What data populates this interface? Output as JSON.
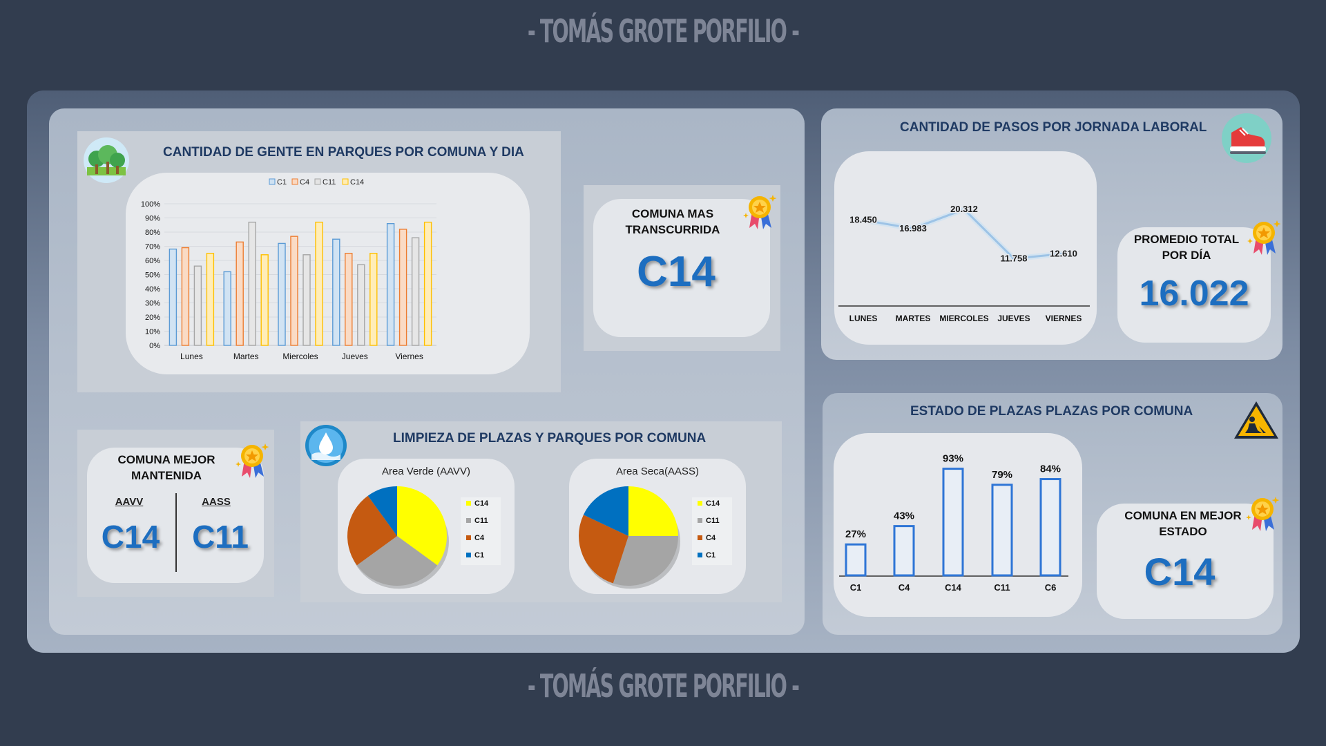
{
  "brand": {
    "text": "- TOMÁS GROTE PORFILIO -"
  },
  "park_chart": {
    "title": "CANTIDAD DE GENTE EN PARQUES POR COMUNA Y DIA",
    "chart_data": {
      "type": "bar",
      "categories": [
        "Lunes",
        "Martes",
        "Miercoles",
        "Jueves",
        "Viernes"
      ],
      "series": [
        {
          "name": "C1",
          "values": [
            0.68,
            0.52,
            0.72,
            0.75,
            0.86
          ]
        },
        {
          "name": "C4",
          "values": [
            0.69,
            0.73,
            0.77,
            0.65,
            0.82
          ]
        },
        {
          "name": "C11",
          "values": [
            0.56,
            0.87,
            0.64,
            0.57,
            0.76
          ]
        },
        {
          "name": "C14",
          "values": [
            0.65,
            0.64,
            0.87,
            0.65,
            0.87
          ]
        }
      ],
      "yticks": [
        "0%",
        "10%",
        "20%",
        "30%",
        "40%",
        "50%",
        "60%",
        "70%",
        "80%",
        "90%",
        "100%"
      ],
      "ylim": [
        0,
        1
      ],
      "legend": "top",
      "colors": [
        "#5b9bd5",
        "#ed7d31",
        "#a5a5a5",
        "#ffc000"
      ]
    }
  },
  "kpi_transcurrida": {
    "label": "COMUNA MAS TRANSCURRIDA",
    "value": "C14"
  },
  "kpi_mantenida": {
    "label": "COMUNA MEJOR MANTENIDA",
    "left_label": "AAVV",
    "left_value": "C14",
    "right_label": "AASS",
    "right_value": "C11"
  },
  "limpieza": {
    "title": "LIMPIEZA DE PLAZAS Y PARQUES POR COMUNA",
    "chart_data": [
      {
        "type": "pie",
        "title": "Area Verde (AAVV)",
        "labels": [
          "C14",
          "C11",
          "C4",
          "C1"
        ],
        "values": [
          35,
          30,
          25,
          10
        ],
        "colors": [
          "#ffff00",
          "#a5a5a5",
          "#c55a11",
          "#0070c0"
        ]
      },
      {
        "type": "pie",
        "title": "Area Seca(AASS)",
        "labels": [
          "C14",
          "C11",
          "C4",
          "C1"
        ],
        "values": [
          25,
          30,
          27,
          18
        ],
        "colors": [
          "#ffff00",
          "#a5a5a5",
          "#c55a11",
          "#0070c0"
        ]
      }
    ]
  },
  "pasos": {
    "title": "CANTIDAD DE PASOS POR JORNADA LABORAL",
    "chart_data": {
      "type": "line",
      "categories": [
        "LUNES",
        "MARTES",
        "MIERCOLES",
        "JUEVES",
        "VIERNES"
      ],
      "values": [
        18450,
        16983,
        20312,
        11758,
        12610
      ],
      "data_labels": [
        "18.450",
        "16.983",
        "20.312",
        "11.758",
        "12.610"
      ],
      "color": "#9dc3e6"
    }
  },
  "kpi_promedio": {
    "label": "PROMEDIO TOTAL POR DÍA",
    "value": "16.022"
  },
  "estado": {
    "title": "ESTADO DE PLAZAS PLAZAS POR COMUNA",
    "chart_data": {
      "type": "bar",
      "categories": [
        "C1",
        "C4",
        "C14",
        "C11",
        "C6"
      ],
      "values": [
        27,
        43,
        93,
        79,
        84
      ],
      "data_labels": [
        "27%",
        "43%",
        "93%",
        "79%",
        "84%"
      ],
      "color": "#2e75d6"
    }
  },
  "kpi_estado": {
    "label": "COMUNA EN MEJOR ESTADO",
    "value": "C14"
  },
  "icons": [
    "trees-icon",
    "medal-icon",
    "water-drop-icon",
    "sneaker-icon",
    "construction-sign-icon"
  ]
}
